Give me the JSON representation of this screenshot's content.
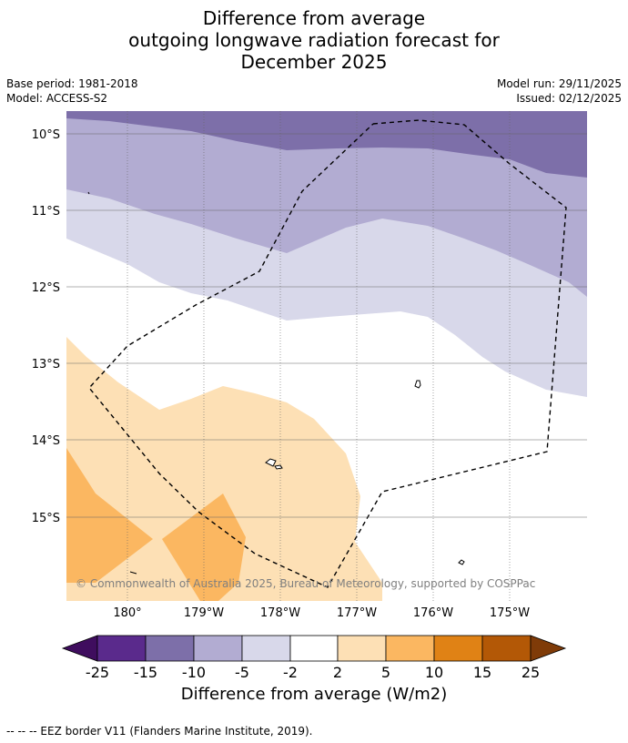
{
  "title": {
    "line1": "Difference from average",
    "line2": "outgoing longwave radiation forecast for",
    "line3": "December 2025"
  },
  "meta": {
    "base_period": "Base period: 1981-2018",
    "model": "Model: ACCESS-S2",
    "model_run": "Model run: 29/11/2025",
    "issued": "Issued: 02/12/2025"
  },
  "map": {
    "lat_labels": [
      "10°S",
      "11°S",
      "12°S",
      "13°S",
      "14°S",
      "15°S"
    ],
    "lon_labels": [
      "180°",
      "179°W",
      "178°W",
      "177°W",
      "176°W",
      "175°W"
    ],
    "credit": "© Commonwealth of Australia 2025, Bureau of Meteorology, supported by COSPPac"
  },
  "colorbar": {
    "labels": [
      "-25",
      "-15",
      "-10",
      "-5",
      "-2",
      "2",
      "5",
      "10",
      "15",
      "25"
    ],
    "colors": [
      "#3f0d5e",
      "#5a2a8c",
      "#7d6fa9",
      "#b2acd2",
      "#d8d8ea",
      "#ffffff",
      "#fde0b5",
      "#fbb761",
      "#e08215",
      "#b35806",
      "#7f3b08"
    ],
    "title": "Difference from average (W/m2)"
  },
  "footnote": "--  --  -- EEZ border V11 (Flanders Marine Institute, 2019)."
}
